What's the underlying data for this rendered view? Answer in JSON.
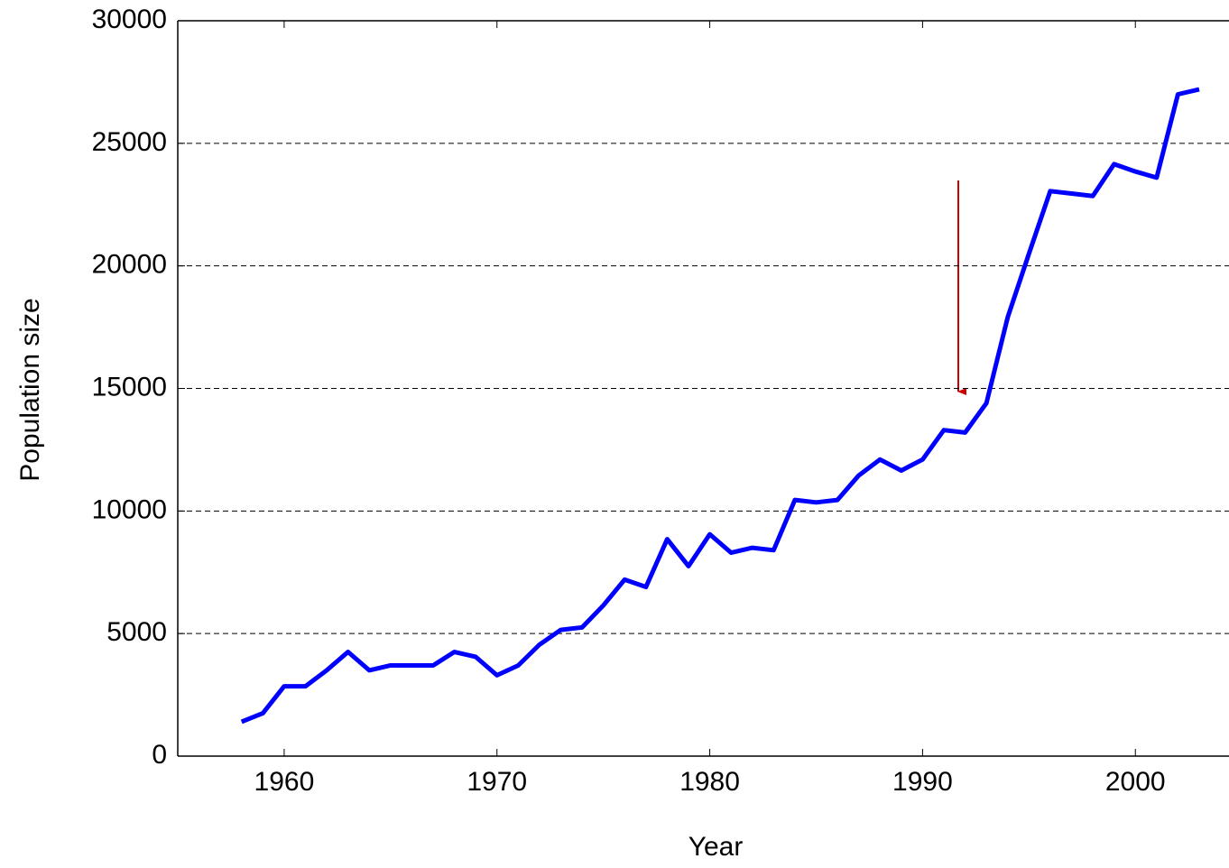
{
  "chart_data": {
    "type": "line",
    "xlabel": "Year",
    "ylabel": "Population size",
    "x": [
      1958,
      1959,
      1960,
      1961,
      1962,
      1963,
      1964,
      1965,
      1966,
      1967,
      1968,
      1969,
      1970,
      1971,
      1972,
      1973,
      1974,
      1975,
      1976,
      1977,
      1978,
      1979,
      1980,
      1981,
      1982,
      1983,
      1984,
      1985,
      1986,
      1987,
      1988,
      1989,
      1990,
      1991,
      1992,
      1993,
      1994,
      1995,
      1996,
      1997,
      1998,
      1999,
      2000,
      2001,
      2002,
      2003
    ],
    "values": [
      1400,
      1750,
      2850,
      2850,
      3500,
      4250,
      3500,
      3700,
      3700,
      3700,
      4250,
      4050,
      3300,
      3700,
      4550,
      5150,
      5250,
      6150,
      7200,
      6900,
      8850,
      7750,
      9050,
      8300,
      8500,
      8400,
      10450,
      10350,
      10450,
      11450,
      12100,
      11650,
      12100,
      13300,
      13200,
      14400,
      17900,
      20500,
      23050,
      22950,
      22850,
      24150,
      23850,
      23600,
      27000,
      27200
    ],
    "color": "#0000ff",
    "xlim": [
      1955,
      2004.4
    ],
    "xticks": [
      1960,
      1970,
      1980,
      1990,
      2000
    ],
    "ylim": [
      0,
      30000
    ],
    "yticks": [
      0,
      5000,
      10000,
      15000,
      20000,
      25000,
      30000
    ],
    "grid": true
  }
}
